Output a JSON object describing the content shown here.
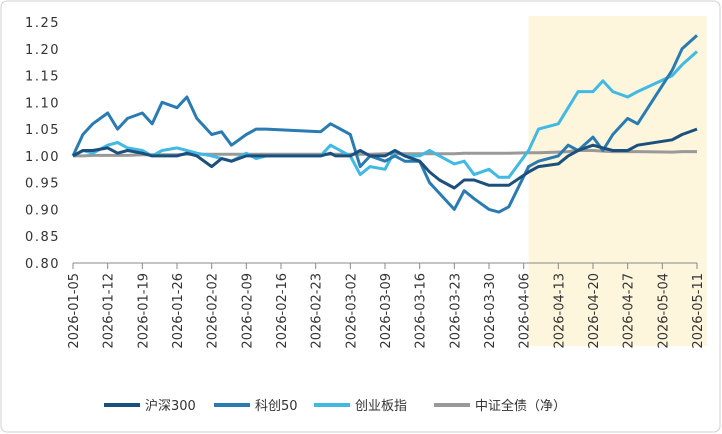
{
  "chart_data": {
    "type": "line",
    "x": [
      "2026-01-05",
      "2026-01-07",
      "2026-01-09",
      "2026-01-12",
      "2026-01-14",
      "2026-01-16",
      "2026-01-19",
      "2026-01-21",
      "2026-01-23",
      "2026-01-26",
      "2026-01-28",
      "2026-01-30",
      "2026-02-02",
      "2026-02-04",
      "2026-02-06",
      "2026-02-09",
      "2026-02-11",
      "2026-02-13",
      "2026-02-24",
      "2026-02-26",
      "2026-02-27",
      "2026-03-02",
      "2026-03-04",
      "2026-03-06",
      "2026-03-09",
      "2026-03-11",
      "2026-03-13",
      "2026-03-16",
      "2026-03-18",
      "2026-03-20",
      "2026-03-23",
      "2026-03-25",
      "2026-03-27",
      "2026-03-30",
      "2026-04-01",
      "2026-04-03",
      "2026-04-07",
      "2026-04-09",
      "2026-04-13",
      "2026-04-15",
      "2026-04-17",
      "2026-04-20",
      "2026-04-22",
      "2026-04-24",
      "2026-04-27",
      "2026-04-29",
      "2026-05-06",
      "2026-05-08",
      "2026-05-11"
    ],
    "series": [
      {
        "name": "沪深300",
        "color": "#1b4f7c",
        "values": [
          1.0,
          1.01,
          1.01,
          1.015,
          1.005,
          1.01,
          1.005,
          1.0,
          1.0,
          1.0,
          1.005,
          1.0,
          0.98,
          0.995,
          0.99,
          1.0,
          1.0,
          1.0,
          1.0,
          1.005,
          1.0,
          1.0,
          1.01,
          1.0,
          1.0,
          1.01,
          1.0,
          0.99,
          0.97,
          0.955,
          0.94,
          0.955,
          0.955,
          0.945,
          0.945,
          0.945,
          0.97,
          0.98,
          0.985,
          1.0,
          1.01,
          1.02,
          1.015,
          1.01,
          1.01,
          1.02,
          1.03,
          1.04,
          1.05
        ]
      },
      {
        "name": "科创50",
        "color": "#2a7bb2",
        "values": [
          1.0,
          1.04,
          1.06,
          1.08,
          1.05,
          1.07,
          1.08,
          1.06,
          1.1,
          1.09,
          1.11,
          1.07,
          1.04,
          1.045,
          1.02,
          1.04,
          1.05,
          1.05,
          1.045,
          1.06,
          1.055,
          1.04,
          0.98,
          1.0,
          0.99,
          1.0,
          0.99,
          0.99,
          0.95,
          0.93,
          0.9,
          0.935,
          0.92,
          0.9,
          0.895,
          0.905,
          0.98,
          0.99,
          1.0,
          1.02,
          1.01,
          1.035,
          1.01,
          1.04,
          1.07,
          1.06,
          1.16,
          1.2,
          1.225
        ]
      },
      {
        "name": "创业板指",
        "color": "#41b9e2",
        "values": [
          1.0,
          1.01,
          1.005,
          1.02,
          1.025,
          1.015,
          1.01,
          1.0,
          1.01,
          1.015,
          1.01,
          1.005,
          1.0,
          0.995,
          0.99,
          1.005,
          0.995,
          1.0,
          1.0,
          1.02,
          1.015,
          1.0,
          0.965,
          0.98,
          0.975,
          1.01,
          1.0,
          1.0,
          1.01,
          1.0,
          0.985,
          0.99,
          0.965,
          0.975,
          0.96,
          0.96,
          1.01,
          1.05,
          1.06,
          1.09,
          1.12,
          1.12,
          1.14,
          1.12,
          1.11,
          1.12,
          1.15,
          1.17,
          1.195
        ]
      },
      {
        "name": "中证全债（净）",
        "color": "#999999",
        "values": [
          1.0,
          1.0,
          1.001,
          1.001,
          1.001,
          1.001,
          1.002,
          1.002,
          1.002,
          1.002,
          1.003,
          1.003,
          1.003,
          1.003,
          1.003,
          1.003,
          1.003,
          1.003,
          1.003,
          1.003,
          1.003,
          1.003,
          1.003,
          1.003,
          1.004,
          1.004,
          1.004,
          1.004,
          1.004,
          1.004,
          1.004,
          1.005,
          1.005,
          1.005,
          1.005,
          1.005,
          1.006,
          1.006,
          1.007,
          1.008,
          1.01,
          1.01,
          1.009,
          1.008,
          1.008,
          1.008,
          1.007,
          1.008,
          1.008
        ]
      }
    ],
    "ylim": [
      0.8,
      1.25
    ],
    "yticks": [
      {
        "value": 0.8,
        "label": "0.80"
      },
      {
        "value": 0.85,
        "label": "0.85"
      },
      {
        "value": 0.9,
        "label": "0.90"
      },
      {
        "value": 0.95,
        "label": "0.95"
      },
      {
        "value": 1,
        "label": "1.00"
      },
      {
        "value": 1.05,
        "label": "1.05"
      },
      {
        "value": 1.1,
        "label": "1.10"
      },
      {
        "value": 1.15,
        "label": "1.15"
      },
      {
        "value": 1.2,
        "label": "1.20"
      },
      {
        "value": 1.25,
        "label": "1.25"
      }
    ],
    "xlim": [
      "2026-01-05",
      "2026-05-11"
    ],
    "xticks": [
      "2026-01-05",
      "2026-01-12",
      "2026-01-19",
      "2026-01-26",
      "2026-02-02",
      "2026-02-09",
      "2026-02-16",
      "2026-02-23",
      "2026-03-02",
      "2026-03-09",
      "2026-03-16",
      "2026-03-23",
      "2026-03-30",
      "2026-04-06",
      "2026-04-13",
      "2026-04-20",
      "2026-04-27",
      "2026-05-04",
      "2026-05-11"
    ],
    "shaded_range": [
      "2026-04-07",
      "2026-05-13"
    ],
    "shaded_color": "#fdf5dc",
    "legend": "bottom"
  }
}
